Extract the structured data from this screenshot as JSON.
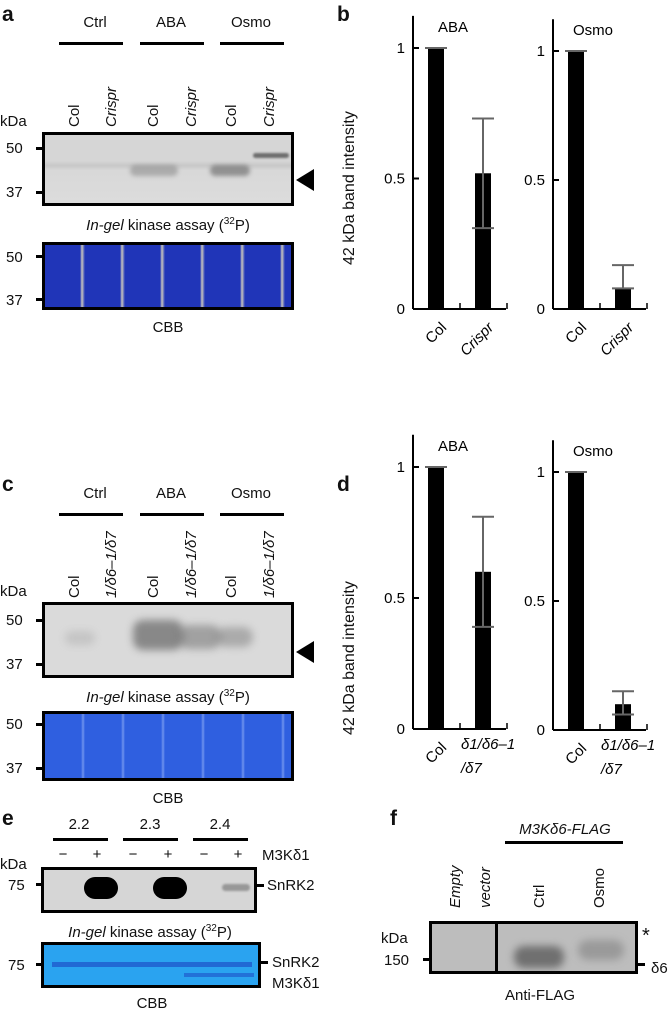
{
  "panels": {
    "a": "a",
    "b": "b",
    "c": "c",
    "d": "d",
    "e": "e",
    "f": "f"
  },
  "a": {
    "groups": [
      "Ctrl",
      "ABA",
      "Osmo"
    ],
    "lanes": [
      "Col",
      "Crispr",
      "Col",
      "Crispr",
      "Col",
      "Crispr"
    ],
    "kda": "kDa",
    "markers": [
      "50",
      "37"
    ],
    "caption_italic": "In-gel",
    "caption_rest": " kinase assay (",
    "caption_sup": "32",
    "caption_end": "P)",
    "cbb": "CBB"
  },
  "c": {
    "groups": [
      "Ctrl",
      "ABA",
      "Osmo"
    ],
    "lanes": [
      "Col",
      "1/δ6–1/δ7",
      "Col",
      "1/δ6–1/δ7",
      "Col",
      "1/δ6–1/δ7"
    ],
    "kda": "kDa",
    "markers": [
      "50",
      "37"
    ],
    "caption_italic": "In-gel",
    "caption_rest": " kinase assay (",
    "caption_sup": "32",
    "caption_end": "P)",
    "cbb": "CBB"
  },
  "e": {
    "groups": [
      "2.2",
      "2.3",
      "2.4"
    ],
    "signs": [
      "−",
      "+",
      "−",
      "+",
      "−",
      "+"
    ],
    "row_label": "M3Kδ1",
    "kda": "kDa",
    "marker": "75",
    "band_label": "SnRK2",
    "cbb_labels": [
      "SnRK2",
      "M3Kδ1"
    ],
    "caption_italic": "In-gel",
    "caption_rest": " kinase assay (",
    "caption_sup": "32",
    "caption_end": "P)",
    "cbb": "CBB"
  },
  "f": {
    "construct": "M3Kδ6-FLAG",
    "lanes": [
      "Empty",
      "vector",
      "Ctrl",
      "Osmo"
    ],
    "kda": "kDa",
    "marker": "150",
    "star": "*",
    "band_label": "δ6",
    "caption": "Anti-FLAG"
  },
  "chart_data": [
    {
      "panel": "b",
      "type": "bar",
      "title": "ABA",
      "ylabel": "42 kDa band intensity",
      "categories": [
        "Col",
        "Crispr"
      ],
      "values": [
        1,
        0.52
      ],
      "err_low": [
        1,
        0.31
      ],
      "err_high": [
        1,
        0.73
      ],
      "yticks": [
        "0",
        "0.5",
        "1"
      ],
      "ylim": [
        0,
        1.1
      ]
    },
    {
      "panel": "b",
      "type": "bar",
      "title": "Osmo",
      "categories": [
        "Col",
        "Crispr"
      ],
      "values": [
        1,
        0.08
      ],
      "err_low": [
        1,
        0.08
      ],
      "err_high": [
        1,
        0.17
      ],
      "yticks": [
        "0",
        "0.5",
        "1"
      ],
      "ylim": [
        0,
        1.1
      ]
    },
    {
      "panel": "d",
      "type": "bar",
      "title": "ABA",
      "ylabel": "42 kDa band intensity",
      "categories": [
        "Col",
        "δ1/δ6–1 /δ7"
      ],
      "values": [
        1,
        0.6
      ],
      "err_low": [
        1,
        0.39
      ],
      "err_high": [
        1,
        0.81
      ],
      "yticks": [
        "0",
        "0.5",
        "1"
      ],
      "ylim": [
        0,
        1.1
      ]
    },
    {
      "panel": "d",
      "type": "bar",
      "title": "Osmo",
      "categories": [
        "Col",
        "δ1/δ6–1 /δ7"
      ],
      "values": [
        1,
        0.1
      ],
      "err_low": [
        1,
        0.06
      ],
      "err_high": [
        1,
        0.15
      ],
      "yticks": [
        "0",
        "0.5",
        "1"
      ],
      "ylim": [
        0,
        1.1
      ]
    }
  ]
}
